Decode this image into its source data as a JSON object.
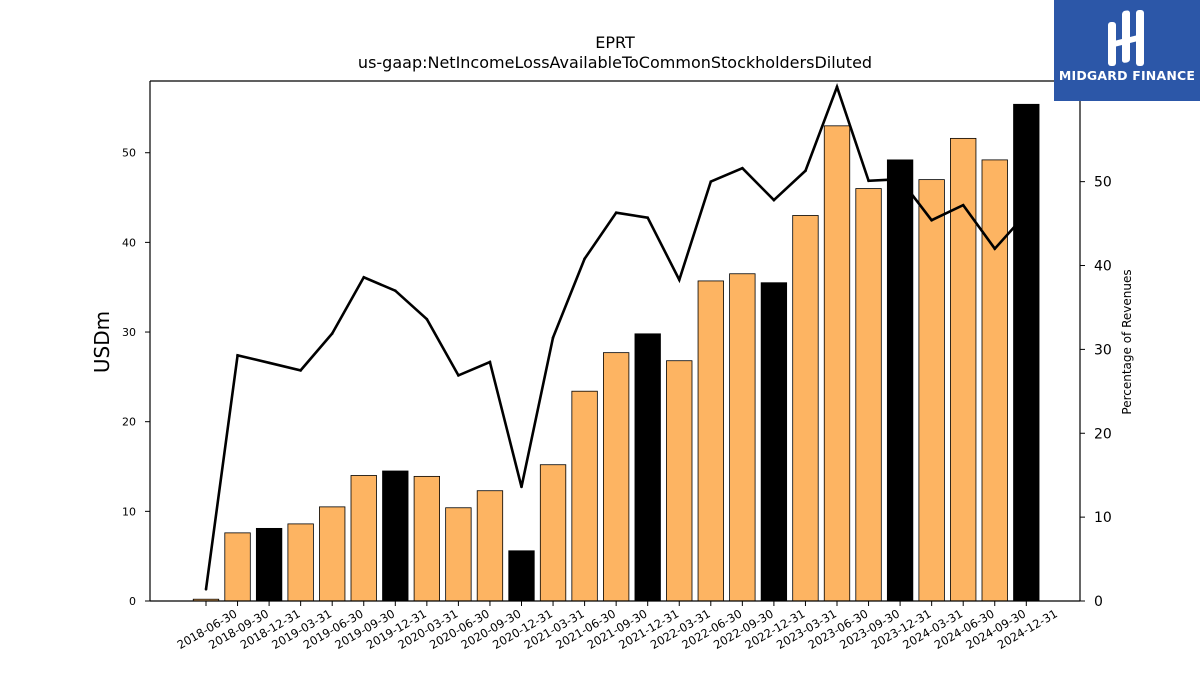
{
  "chart_data": {
    "type": "bar",
    "title": "EPRT",
    "subtitle": "us-gaap:NetIncomeLossAvailableToCommonStockholdersDiluted",
    "ylabel": "USDm",
    "y2label": "Percentage of Revenues",
    "ylim": [
      0,
      58
    ],
    "y2lim": [
      0,
      62
    ],
    "yticks": [
      0,
      10,
      20,
      30,
      40,
      50
    ],
    "y2ticks": [
      0,
      10,
      20,
      30,
      40,
      50
    ],
    "categories": [
      "2018-06-30",
      "2018-09-30",
      "2018-12-31",
      "2019-03-31",
      "2019-06-30",
      "2019-09-30",
      "2019-12-31",
      "2020-03-31",
      "2020-06-30",
      "2020-09-30",
      "2020-12-31",
      "2021-03-31",
      "2021-06-30",
      "2021-09-30",
      "2021-12-31",
      "2022-03-31",
      "2022-06-30",
      "2022-09-30",
      "2022-12-31",
      "2023-03-31",
      "2023-06-30",
      "2023-09-30",
      "2023-12-31",
      "2024-03-31",
      "2024-06-30",
      "2024-09-30",
      "2024-12-31"
    ],
    "series": [
      {
        "axis": "left",
        "type": "bar",
        "values": [
          0.2,
          7.6,
          8.1,
          8.6,
          10.5,
          14.0,
          14.5,
          13.9,
          10.4,
          12.3,
          5.6,
          15.2,
          23.4,
          27.7,
          29.8,
          26.8,
          35.7,
          36.5,
          35.5,
          43.0,
          53.0,
          46.0,
          49.2,
          47.0,
          51.6,
          49.2,
          55.4
        ],
        "colors": [
          "#fdb462",
          "#fdb462",
          "#000000",
          "#fdb462",
          "#fdb462",
          "#fdb462",
          "#000000",
          "#fdb462",
          "#fdb462",
          "#fdb462",
          "#000000",
          "#fdb462",
          "#fdb462",
          "#fdb462",
          "#000000",
          "#fdb462",
          "#fdb462",
          "#fdb462",
          "#000000",
          "#fdb462",
          "#fdb462",
          "#fdb462",
          "#000000",
          "#fdb462",
          "#fdb462",
          "#fdb462",
          "#000000"
        ]
      },
      {
        "axis": "right",
        "type": "line",
        "color": "#000000",
        "values": [
          1.4,
          29.3,
          28.4,
          27.5,
          31.9,
          38.6,
          37.0,
          33.6,
          26.9,
          28.5,
          13.6,
          31.4,
          40.8,
          46.3,
          45.7,
          38.3,
          50.0,
          51.6,
          47.8,
          51.3,
          61.3,
          50.1,
          50.3,
          45.4,
          47.2,
          42.0,
          46.2
        ]
      }
    ],
    "grid": false
  },
  "logo": {
    "text": "MIDGARD FINANCE",
    "background": "#2c57a8"
  }
}
